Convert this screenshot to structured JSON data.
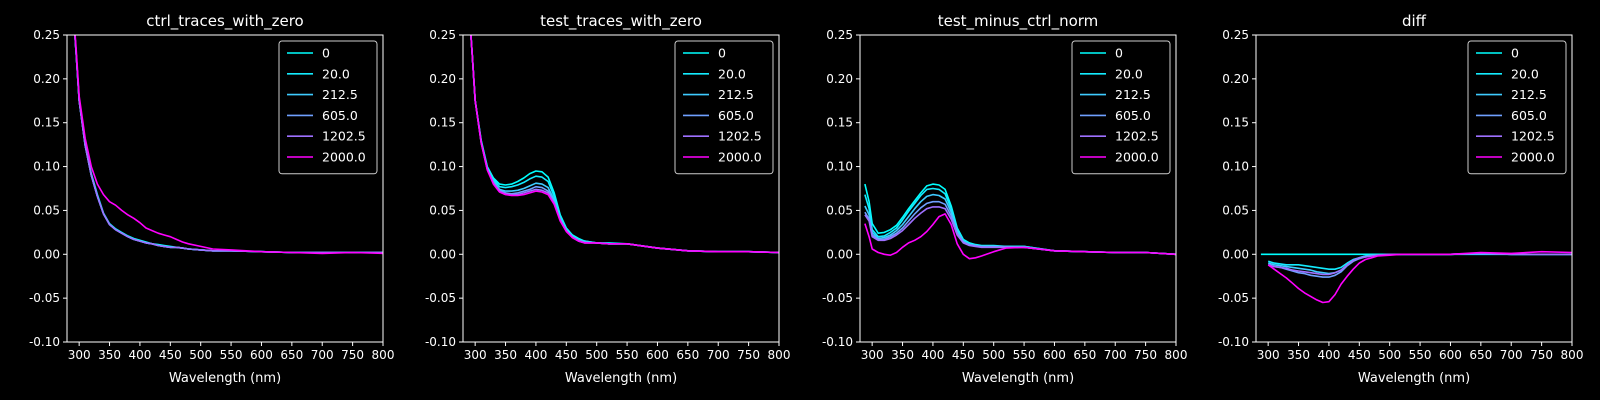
{
  "figure": {
    "background": "#000000",
    "foreground": "#ffffff"
  },
  "chart_data": [
    {
      "type": "line",
      "title": "ctrl_traces_with_zero",
      "xlabel": "Wavelength (nm)",
      "ylabel": "",
      "xlim": [
        280,
        800
      ],
      "ylim": [
        -0.1,
        0.25
      ],
      "xticks": [
        300,
        350,
        400,
        450,
        500,
        550,
        600,
        650,
        700,
        750,
        800
      ],
      "yticks": [
        -0.1,
        -0.05,
        0.0,
        0.05,
        0.1,
        0.15,
        0.2,
        0.25
      ],
      "legend_position": "top-right",
      "grid": false,
      "x": [
        288,
        295,
        300,
        310,
        320,
        330,
        340,
        350,
        360,
        370,
        380,
        390,
        400,
        410,
        420,
        430,
        440,
        450,
        460,
        470,
        480,
        500,
        520,
        550,
        600,
        650,
        700,
        750,
        800
      ],
      "series": [
        {
          "name": "0",
          "color": "#00ffff",
          "values": [
            0.3,
            0.23,
            0.175,
            0.125,
            0.092,
            0.068,
            0.047,
            0.035,
            0.029,
            0.025,
            0.021,
            0.018,
            0.016,
            0.014,
            0.012,
            0.011,
            0.01,
            0.009,
            0.008,
            0.007,
            0.006,
            0.005,
            0.004,
            0.004,
            0.003,
            0.002,
            0.002,
            0.002,
            0.002
          ]
        },
        {
          "name": "20.0",
          "color": "#13ecff",
          "values": [
            0.3,
            0.23,
            0.175,
            0.124,
            0.09,
            0.066,
            0.046,
            0.034,
            0.028,
            0.024,
            0.02,
            0.017,
            0.015,
            0.013,
            0.012,
            0.01,
            0.009,
            0.008,
            0.008,
            0.007,
            0.006,
            0.005,
            0.004,
            0.004,
            0.003,
            0.002,
            0.002,
            0.002,
            0.002
          ]
        },
        {
          "name": "212.5",
          "color": "#3ecbff",
          "values": [
            0.3,
            0.23,
            0.175,
            0.124,
            0.09,
            0.066,
            0.046,
            0.034,
            0.028,
            0.024,
            0.02,
            0.017,
            0.015,
            0.013,
            0.012,
            0.01,
            0.009,
            0.008,
            0.008,
            0.007,
            0.006,
            0.005,
            0.004,
            0.004,
            0.003,
            0.002,
            0.002,
            0.002,
            0.002
          ]
        },
        {
          "name": "605.0",
          "color": "#6fa0ff",
          "values": [
            0.3,
            0.23,
            0.175,
            0.124,
            0.09,
            0.066,
            0.046,
            0.034,
            0.028,
            0.024,
            0.02,
            0.017,
            0.015,
            0.013,
            0.012,
            0.01,
            0.009,
            0.008,
            0.008,
            0.007,
            0.006,
            0.005,
            0.004,
            0.004,
            0.003,
            0.002,
            0.002,
            0.002,
            0.002
          ]
        },
        {
          "name": "1202.5",
          "color": "#9e70ff",
          "values": [
            0.3,
            0.23,
            0.175,
            0.124,
            0.09,
            0.066,
            0.046,
            0.034,
            0.028,
            0.024,
            0.02,
            0.017,
            0.015,
            0.013,
            0.012,
            0.01,
            0.009,
            0.008,
            0.008,
            0.007,
            0.006,
            0.005,
            0.004,
            0.004,
            0.003,
            0.002,
            0.002,
            0.002,
            0.002
          ]
        },
        {
          "name": "2000.0",
          "color": "#ff00ff",
          "values": [
            0.3,
            0.235,
            0.18,
            0.132,
            0.1,
            0.08,
            0.068,
            0.06,
            0.056,
            0.05,
            0.045,
            0.041,
            0.036,
            0.03,
            0.027,
            0.024,
            0.022,
            0.02,
            0.017,
            0.014,
            0.012,
            0.009,
            0.006,
            0.005,
            0.003,
            0.002,
            0.001,
            0.002,
            0.001
          ]
        }
      ]
    },
    {
      "type": "line",
      "title": "test_traces_with_zero",
      "xlabel": "Wavelength (nm)",
      "ylabel": "",
      "xlim": [
        280,
        800
      ],
      "ylim": [
        -0.1,
        0.25
      ],
      "xticks": [
        300,
        350,
        400,
        450,
        500,
        550,
        600,
        650,
        700,
        750,
        800
      ],
      "yticks": [
        -0.1,
        -0.05,
        0.0,
        0.05,
        0.1,
        0.15,
        0.2,
        0.25
      ],
      "legend_position": "top-right",
      "grid": false,
      "x": [
        288,
        295,
        300,
        310,
        320,
        330,
        340,
        350,
        360,
        370,
        380,
        390,
        400,
        410,
        420,
        430,
        440,
        450,
        460,
        470,
        480,
        500,
        520,
        550,
        600,
        650,
        700,
        750,
        800
      ],
      "series": [
        {
          "name": "0",
          "color": "#00ffff",
          "values": [
            0.3,
            0.23,
            0.175,
            0.13,
            0.1,
            0.087,
            0.08,
            0.079,
            0.08,
            0.083,
            0.087,
            0.092,
            0.095,
            0.094,
            0.088,
            0.07,
            0.045,
            0.03,
            0.022,
            0.018,
            0.015,
            0.013,
            0.013,
            0.012,
            0.007,
            0.004,
            0.003,
            0.003,
            0.002
          ]
        },
        {
          "name": "20.0",
          "color": "#13ecff",
          "values": [
            0.3,
            0.23,
            0.175,
            0.129,
            0.099,
            0.085,
            0.077,
            0.076,
            0.077,
            0.079,
            0.082,
            0.086,
            0.089,
            0.088,
            0.083,
            0.066,
            0.043,
            0.029,
            0.021,
            0.017,
            0.015,
            0.013,
            0.012,
            0.012,
            0.007,
            0.004,
            0.003,
            0.003,
            0.002
          ]
        },
        {
          "name": "212.5",
          "color": "#3ecbff",
          "values": [
            0.3,
            0.23,
            0.175,
            0.128,
            0.098,
            0.083,
            0.074,
            0.072,
            0.072,
            0.073,
            0.075,
            0.078,
            0.081,
            0.08,
            0.076,
            0.062,
            0.041,
            0.028,
            0.02,
            0.016,
            0.014,
            0.013,
            0.012,
            0.012,
            0.007,
            0.004,
            0.003,
            0.003,
            0.002
          ]
        },
        {
          "name": "605.0",
          "color": "#6fa0ff",
          "values": [
            0.3,
            0.23,
            0.175,
            0.128,
            0.097,
            0.082,
            0.073,
            0.07,
            0.069,
            0.07,
            0.072,
            0.074,
            0.077,
            0.076,
            0.072,
            0.059,
            0.04,
            0.027,
            0.02,
            0.016,
            0.014,
            0.013,
            0.012,
            0.012,
            0.007,
            0.004,
            0.003,
            0.003,
            0.002
          ]
        },
        {
          "name": "1202.5",
          "color": "#9e70ff",
          "values": [
            0.3,
            0.23,
            0.175,
            0.127,
            0.097,
            0.081,
            0.072,
            0.069,
            0.068,
            0.068,
            0.07,
            0.072,
            0.074,
            0.073,
            0.07,
            0.058,
            0.039,
            0.027,
            0.019,
            0.015,
            0.013,
            0.013,
            0.012,
            0.012,
            0.007,
            0.004,
            0.003,
            0.003,
            0.002
          ]
        },
        {
          "name": "2000.0",
          "color": "#ff00ff",
          "values": [
            0.3,
            0.23,
            0.175,
            0.127,
            0.096,
            0.08,
            0.071,
            0.068,
            0.067,
            0.067,
            0.068,
            0.07,
            0.072,
            0.071,
            0.068,
            0.057,
            0.038,
            0.026,
            0.019,
            0.015,
            0.013,
            0.013,
            0.012,
            0.012,
            0.007,
            0.004,
            0.003,
            0.003,
            0.002
          ]
        }
      ]
    },
    {
      "type": "line",
      "title": "test_minus_ctrl_norm",
      "xlabel": "Wavelength (nm)",
      "ylabel": "",
      "xlim": [
        280,
        800
      ],
      "ylim": [
        -0.1,
        0.25
      ],
      "xticks": [
        300,
        350,
        400,
        450,
        500,
        550,
        600,
        650,
        700,
        750,
        800
      ],
      "yticks": [
        -0.1,
        -0.05,
        0.0,
        0.05,
        0.1,
        0.15,
        0.2,
        0.25
      ],
      "legend_position": "top-right",
      "grid": false,
      "x": [
        288,
        295,
        300,
        310,
        320,
        330,
        340,
        350,
        360,
        370,
        380,
        390,
        400,
        410,
        420,
        430,
        440,
        450,
        460,
        470,
        480,
        500,
        520,
        550,
        600,
        650,
        700,
        750,
        800
      ],
      "series": [
        {
          "name": "0",
          "color": "#00ffff",
          "values": [
            0.08,
            0.06,
            0.035,
            0.024,
            0.025,
            0.028,
            0.033,
            0.042,
            0.052,
            0.061,
            0.07,
            0.078,
            0.08,
            0.079,
            0.074,
            0.055,
            0.03,
            0.017,
            0.013,
            0.011,
            0.01,
            0.01,
            0.009,
            0.009,
            0.004,
            0.003,
            0.002,
            0.002,
            0.0
          ]
        },
        {
          "name": "20.0",
          "color": "#13ecff",
          "values": [
            0.068,
            0.052,
            0.028,
            0.02,
            0.021,
            0.025,
            0.03,
            0.039,
            0.049,
            0.058,
            0.067,
            0.074,
            0.075,
            0.074,
            0.069,
            0.052,
            0.028,
            0.016,
            0.012,
            0.01,
            0.009,
            0.009,
            0.009,
            0.009,
            0.004,
            0.003,
            0.002,
            0.002,
            0.0
          ]
        },
        {
          "name": "212.5",
          "color": "#3ecbff",
          "values": [
            0.055,
            0.045,
            0.025,
            0.018,
            0.019,
            0.022,
            0.027,
            0.034,
            0.043,
            0.052,
            0.06,
            0.066,
            0.068,
            0.067,
            0.063,
            0.048,
            0.026,
            0.015,
            0.011,
            0.01,
            0.009,
            0.009,
            0.009,
            0.008,
            0.004,
            0.003,
            0.002,
            0.002,
            0.0
          ]
        },
        {
          "name": "605.0",
          "color": "#6fa0ff",
          "values": [
            0.048,
            0.04,
            0.022,
            0.017,
            0.017,
            0.02,
            0.024,
            0.03,
            0.038,
            0.046,
            0.053,
            0.058,
            0.06,
            0.06,
            0.057,
            0.044,
            0.024,
            0.014,
            0.011,
            0.01,
            0.009,
            0.009,
            0.008,
            0.008,
            0.004,
            0.003,
            0.002,
            0.002,
            0.0
          ]
        },
        {
          "name": "1202.5",
          "color": "#9e70ff",
          "values": [
            0.045,
            0.038,
            0.02,
            0.016,
            0.016,
            0.018,
            0.022,
            0.027,
            0.034,
            0.041,
            0.047,
            0.052,
            0.054,
            0.054,
            0.052,
            0.04,
            0.022,
            0.013,
            0.01,
            0.009,
            0.008,
            0.008,
            0.008,
            0.008,
            0.004,
            0.003,
            0.002,
            0.002,
            0.0
          ]
        },
        {
          "name": "2000.0",
          "color": "#ff00ff",
          "values": [
            0.035,
            0.02,
            0.006,
            0.002,
            0.0,
            -0.001,
            0.002,
            0.008,
            0.013,
            0.016,
            0.02,
            0.026,
            0.034,
            0.043,
            0.046,
            0.034,
            0.012,
            0.0,
            -0.005,
            -0.004,
            -0.002,
            0.003,
            0.007,
            0.008,
            0.004,
            0.003,
            0.002,
            0.002,
            0.0
          ]
        }
      ]
    },
    {
      "type": "line",
      "title": "diff",
      "xlabel": "Wavelength (nm)",
      "ylabel": "",
      "xlim": [
        280,
        800
      ],
      "ylim": [
        -0.1,
        0.25
      ],
      "xticks": [
        300,
        350,
        400,
        450,
        500,
        550,
        600,
        650,
        700,
        750,
        800
      ],
      "yticks": [
        -0.1,
        -0.05,
        0.0,
        0.05,
        0.1,
        0.15,
        0.2,
        0.25
      ],
      "legend_position": "top-right",
      "grid": false,
      "x": [
        288,
        295,
        300,
        310,
        320,
        330,
        340,
        350,
        360,
        370,
        380,
        390,
        400,
        410,
        420,
        430,
        440,
        450,
        460,
        470,
        480,
        500,
        520,
        550,
        600,
        650,
        700,
        750,
        800
      ],
      "series": [
        {
          "name": "0",
          "color": "#00ffff",
          "values": [
            0,
            0,
            0,
            0,
            0,
            0,
            0,
            0,
            0,
            0,
            0,
            0,
            0,
            0,
            0,
            0,
            0,
            0,
            0,
            0,
            0,
            0,
            0,
            0,
            0,
            0,
            0,
            0,
            0
          ]
        },
        {
          "name": "20.0",
          "color": "#13ecff",
          "values": [
            null,
            null,
            -0.008,
            -0.01,
            -0.011,
            -0.012,
            -0.012,
            -0.012,
            -0.013,
            -0.014,
            -0.015,
            -0.016,
            -0.017,
            -0.017,
            -0.015,
            -0.01,
            -0.006,
            -0.004,
            -0.002,
            -0.001,
            -0.001,
            0.0,
            0.0,
            0.0,
            0.0,
            0.001,
            0.0,
            0.0,
            0.0
          ]
        },
        {
          "name": "212.5",
          "color": "#3ecbff",
          "values": [
            null,
            null,
            -0.01,
            -0.012,
            -0.013,
            -0.014,
            -0.015,
            -0.016,
            -0.017,
            -0.018,
            -0.02,
            -0.021,
            -0.022,
            -0.021,
            -0.018,
            -0.012,
            -0.007,
            -0.004,
            -0.002,
            -0.001,
            -0.001,
            0.0,
            0.0,
            0.0,
            0.0,
            0.001,
            0.0,
            0.0,
            0.0
          ]
        },
        {
          "name": "605.0",
          "color": "#6fa0ff",
          "values": [
            null,
            null,
            -0.012,
            -0.014,
            -0.015,
            -0.017,
            -0.019,
            -0.021,
            -0.022,
            -0.024,
            -0.025,
            -0.026,
            -0.026,
            -0.024,
            -0.02,
            -0.013,
            -0.008,
            -0.005,
            -0.003,
            -0.002,
            -0.001,
            0.0,
            0.0,
            0.0,
            0.0,
            0.001,
            0.0,
            0.0,
            0.0
          ]
        },
        {
          "name": "1202.5",
          "color": "#9e70ff",
          "values": [
            null,
            null,
            -0.012,
            -0.014,
            -0.015,
            -0.016,
            -0.018,
            -0.019,
            -0.02,
            -0.021,
            -0.022,
            -0.023,
            -0.023,
            -0.021,
            -0.018,
            -0.012,
            -0.007,
            -0.004,
            -0.003,
            -0.002,
            -0.001,
            0.0,
            0.0,
            0.0,
            0.0,
            0.001,
            0.0,
            0.0,
            0.0
          ]
        },
        {
          "name": "2000.0",
          "color": "#ff00ff",
          "values": [
            null,
            null,
            -0.012,
            -0.017,
            -0.022,
            -0.027,
            -0.033,
            -0.039,
            -0.044,
            -0.048,
            -0.052,
            -0.055,
            -0.054,
            -0.046,
            -0.034,
            -0.025,
            -0.017,
            -0.01,
            -0.006,
            -0.004,
            -0.002,
            -0.001,
            0.0,
            0.0,
            0.0,
            0.002,
            0.001,
            0.003,
            0.002
          ]
        }
      ]
    }
  ]
}
